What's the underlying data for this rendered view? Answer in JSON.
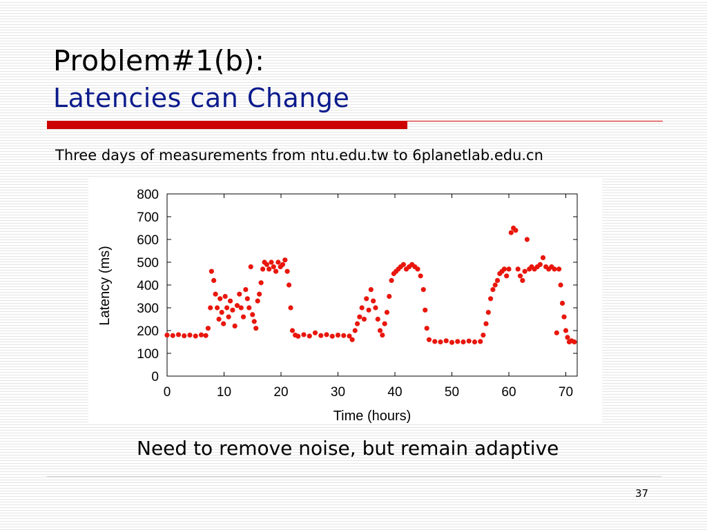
{
  "slide": {
    "title": "Problem#1(b):",
    "subtitle": "Latencies can Change",
    "description": "Three days of measurements from ntu.edu.tw to 6planetlab.edu.cn",
    "caption": "Need to remove noise, but remain adaptive",
    "page_number": "37",
    "accent_color": "#cc0000",
    "subtitle_color": "#0b1a8c"
  },
  "chart_data": {
    "type": "scatter",
    "xlabel": "Time (hours)",
    "ylabel": "Latency (ms)",
    "xlim": [
      0,
      72
    ],
    "ylim": [
      0,
      800
    ],
    "x_ticks": [
      0,
      10,
      20,
      30,
      40,
      50,
      60,
      70
    ],
    "y_ticks": [
      0,
      100,
      200,
      300,
      400,
      500,
      600,
      700,
      800
    ],
    "x_tick_labels": [
      "0",
      "10",
      "20",
      "30",
      "40",
      "50",
      "60",
      "70"
    ],
    "y_tick_labels": [
      "0",
      "100",
      "200",
      "300",
      "400",
      "500",
      "600",
      "700",
      "800"
    ],
    "grid": false,
    "marker_color": "#e8160c",
    "series": [
      {
        "points": [
          [
            0,
            180
          ],
          [
            1,
            178
          ],
          [
            2,
            182
          ],
          [
            3,
            177
          ],
          [
            4,
            180
          ],
          [
            5,
            176
          ],
          [
            6,
            181
          ],
          [
            6.8,
            178
          ],
          [
            7.2,
            210
          ],
          [
            7.6,
            300
          ],
          [
            7.8,
            460
          ],
          [
            8.2,
            420
          ],
          [
            8.5,
            360
          ],
          [
            8.8,
            300
          ],
          [
            9.1,
            250
          ],
          [
            9.3,
            340
          ],
          [
            9.6,
            280
          ],
          [
            9.9,
            230
          ],
          [
            10.2,
            350
          ],
          [
            10.5,
            300
          ],
          [
            10.8,
            260
          ],
          [
            11.1,
            330
          ],
          [
            11.5,
            290
          ],
          [
            11.9,
            220
          ],
          [
            12.3,
            310
          ],
          [
            12.7,
            360
          ],
          [
            13.0,
            300
          ],
          [
            13.4,
            260
          ],
          [
            13.8,
            380
          ],
          [
            14.1,
            340
          ],
          [
            14.4,
            300
          ],
          [
            14.7,
            480
          ],
          [
            15.0,
            270
          ],
          [
            15.3,
            240
          ],
          [
            15.6,
            210
          ],
          [
            15.9,
            330
          ],
          [
            16.2,
            360
          ],
          [
            16.5,
            410
          ],
          [
            16.8,
            470
          ],
          [
            17.1,
            500
          ],
          [
            17.5,
            490
          ],
          [
            17.9,
            470
          ],
          [
            18.3,
            500
          ],
          [
            18.7,
            480
          ],
          [
            19.1,
            460
          ],
          [
            19.5,
            500
          ],
          [
            19.9,
            480
          ],
          [
            20.3,
            490
          ],
          [
            20.7,
            510
          ],
          [
            21.1,
            460
          ],
          [
            21.4,
            400
          ],
          [
            21.7,
            300
          ],
          [
            22.0,
            200
          ],
          [
            22.5,
            180
          ],
          [
            23,
            175
          ],
          [
            24,
            182
          ],
          [
            25,
            176
          ],
          [
            26,
            190
          ],
          [
            27,
            178
          ],
          [
            28,
            182
          ],
          [
            29,
            175
          ],
          [
            30,
            180
          ],
          [
            31,
            178
          ],
          [
            32,
            176
          ],
          [
            32.5,
            160
          ],
          [
            33.0,
            200
          ],
          [
            33.4,
            230
          ],
          [
            33.8,
            260
          ],
          [
            34.2,
            300
          ],
          [
            34.6,
            250
          ],
          [
            35.0,
            340
          ],
          [
            35.4,
            290
          ],
          [
            35.8,
            380
          ],
          [
            36.2,
            330
          ],
          [
            36.6,
            300
          ],
          [
            37.0,
            250
          ],
          [
            37.4,
            200
          ],
          [
            37.8,
            180
          ],
          [
            38.2,
            230
          ],
          [
            38.6,
            280
          ],
          [
            39.0,
            350
          ],
          [
            39.4,
            420
          ],
          [
            39.8,
            450
          ],
          [
            40.2,
            460
          ],
          [
            40.6,
            470
          ],
          [
            41,
            480
          ],
          [
            41.5,
            490
          ],
          [
            42,
            470
          ],
          [
            42.5,
            480
          ],
          [
            43,
            490
          ],
          [
            43.5,
            480
          ],
          [
            44,
            470
          ],
          [
            44.5,
            440
          ],
          [
            45,
            380
          ],
          [
            45.3,
            290
          ],
          [
            45.6,
            210
          ],
          [
            46,
            160
          ],
          [
            47,
            152
          ],
          [
            48,
            150
          ],
          [
            49,
            155
          ],
          [
            50,
            148
          ],
          [
            51,
            152
          ],
          [
            52,
            150
          ],
          [
            53,
            154
          ],
          [
            54,
            150
          ],
          [
            55,
            152
          ],
          [
            55.5,
            180
          ],
          [
            56,
            230
          ],
          [
            56.4,
            280
          ],
          [
            56.8,
            340
          ],
          [
            57.2,
            380
          ],
          [
            57.6,
            400
          ],
          [
            58.0,
            420
          ],
          [
            58.4,
            450
          ],
          [
            58.8,
            460
          ],
          [
            59.2,
            470
          ],
          [
            59.6,
            440
          ],
          [
            60.0,
            470
          ],
          [
            60.4,
            630
          ],
          [
            60.8,
            650
          ],
          [
            61.2,
            640
          ],
          [
            61.6,
            470
          ],
          [
            62.0,
            440
          ],
          [
            62.4,
            420
          ],
          [
            62.8,
            460
          ],
          [
            63.2,
            600
          ],
          [
            63.6,
            470
          ],
          [
            64.0,
            480
          ],
          [
            64.5,
            470
          ],
          [
            65.0,
            480
          ],
          [
            65.5,
            490
          ],
          [
            66.0,
            520
          ],
          [
            66.5,
            480
          ],
          [
            67.0,
            470
          ],
          [
            67.5,
            480
          ],
          [
            68.0,
            470
          ],
          [
            68.4,
            190
          ],
          [
            68.8,
            470
          ],
          [
            69.1,
            400
          ],
          [
            69.4,
            320
          ],
          [
            69.7,
            260
          ],
          [
            70.0,
            200
          ],
          [
            70.3,
            170
          ],
          [
            70.6,
            150
          ],
          [
            71.0,
            155
          ],
          [
            71.5,
            150
          ]
        ]
      }
    ]
  }
}
